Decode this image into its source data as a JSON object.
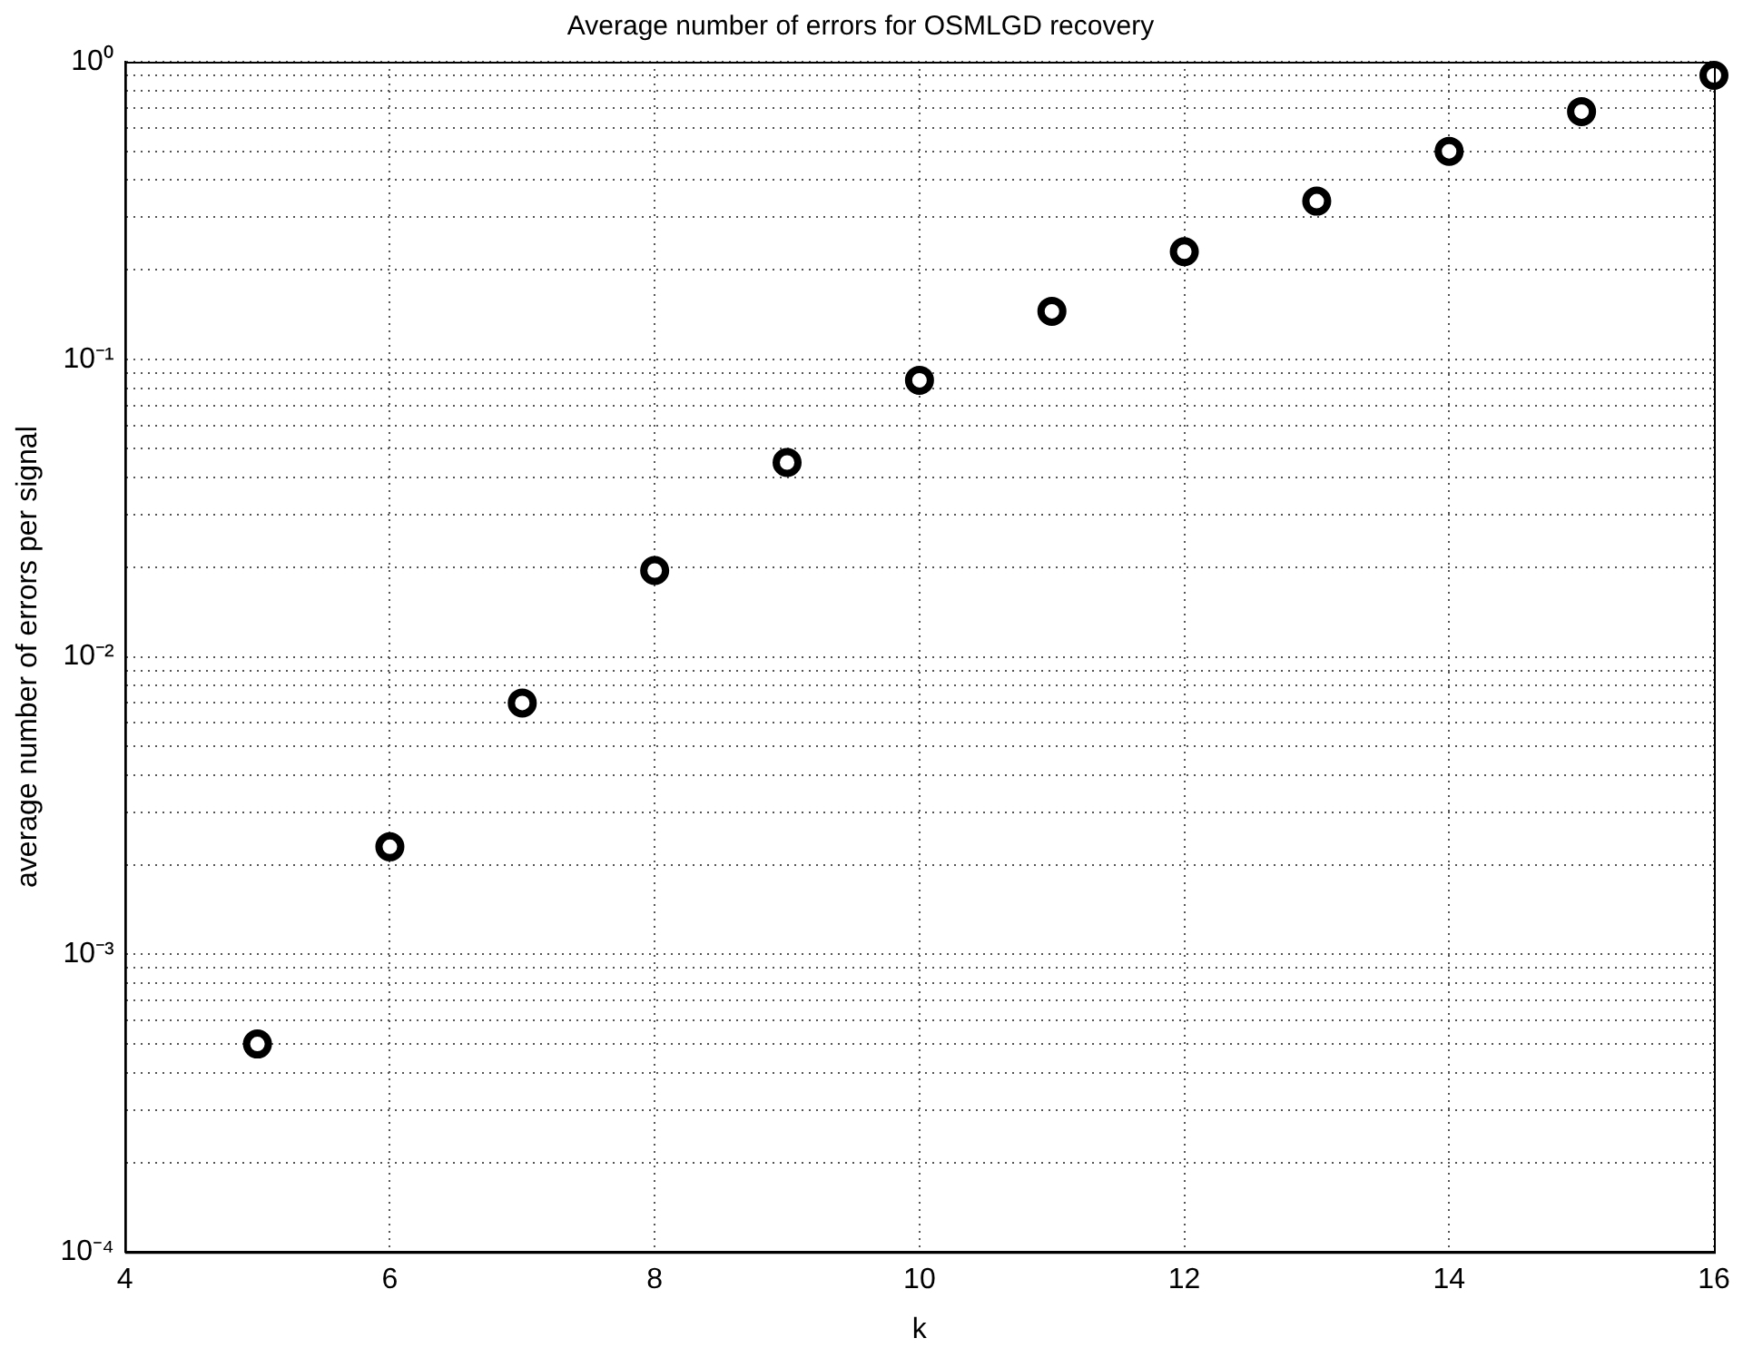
{
  "chart_data": {
    "type": "scatter",
    "title": "Average number of errors for OSMLGD recovery",
    "xlabel": "k",
    "ylabel": "average number of errors per signal",
    "x": [
      5,
      6,
      7,
      8,
      9,
      10,
      11,
      12,
      13,
      14,
      15,
      16
    ],
    "series": [
      {
        "color": "#000000",
        "values": [
          0.0005,
          0.0023,
          0.007,
          0.0195,
          0.045,
          0.085,
          0.145,
          0.23,
          0.34,
          0.5,
          0.68,
          0.9
        ]
      }
    ],
    "log": "y",
    "xlim": [
      4,
      16
    ],
    "xticks": [
      4,
      6,
      8,
      10,
      12,
      14,
      16
    ],
    "ylim": [
      0.0001,
      1
    ],
    "yticks": [
      {
        "value": 0.0001,
        "label": "10⁻⁴"
      },
      {
        "value": 0.0002,
        "label": null
      },
      {
        "value": 0.0003,
        "label": null
      },
      {
        "value": 0.0004,
        "label": null
      },
      {
        "value": 0.0005,
        "label": null
      },
      {
        "value": 0.0006,
        "label": null
      },
      {
        "value": 0.0007,
        "label": null
      },
      {
        "value": 0.0008,
        "label": null
      },
      {
        "value": 0.0009,
        "label": null
      },
      {
        "value": 0.001,
        "label": "10⁻³"
      },
      {
        "value": 0.002,
        "label": null
      },
      {
        "value": 0.003,
        "label": null
      },
      {
        "value": 0.004,
        "label": null
      },
      {
        "value": 0.005,
        "label": null
      },
      {
        "value": 0.006,
        "label": null
      },
      {
        "value": 0.007,
        "label": null
      },
      {
        "value": 0.008,
        "label": null
      },
      {
        "value": 0.009,
        "label": null
      },
      {
        "value": 0.01,
        "label": "10⁻²"
      },
      {
        "value": 0.02,
        "label": null
      },
      {
        "value": 0.03,
        "label": null
      },
      {
        "value": 0.04,
        "label": null
      },
      {
        "value": 0.05,
        "label": null
      },
      {
        "value": 0.06,
        "label": null
      },
      {
        "value": 0.07,
        "label": null
      },
      {
        "value": 0.08,
        "label": null
      },
      {
        "value": 0.09,
        "label": null
      },
      {
        "value": 0.1,
        "label": "10⁻¹"
      },
      {
        "value": 0.2,
        "label": null
      },
      {
        "value": 0.3,
        "label": null
      },
      {
        "value": 0.4,
        "label": null
      },
      {
        "value": 0.5,
        "label": null
      },
      {
        "value": 0.6,
        "label": null
      },
      {
        "value": 0.7,
        "label": null
      },
      {
        "value": 0.8,
        "label": null
      },
      {
        "value": 0.9,
        "label": null
      },
      {
        "value": 1,
        "label": "10⁰"
      }
    ],
    "grid": true,
    "legend": false,
    "marker": "circle"
  }
}
